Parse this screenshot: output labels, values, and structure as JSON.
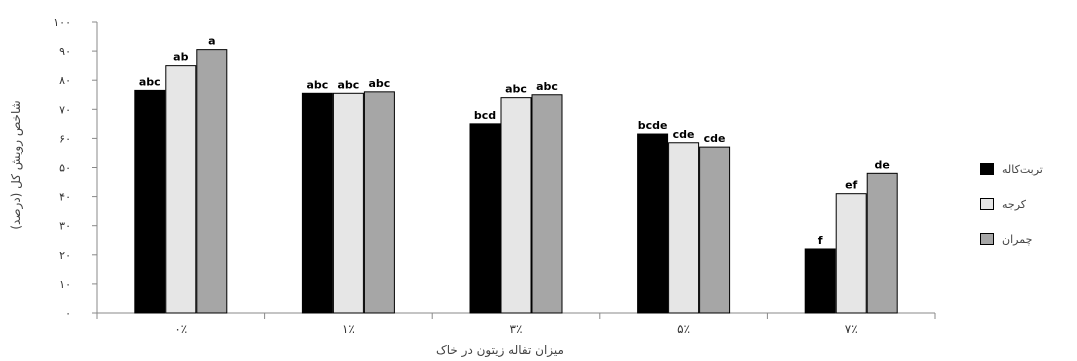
{
  "chart_data": {
    "type": "bar",
    "title": "",
    "xlabel": "میزان تفاله زیتون در خاک",
    "ylabel": "شاخص رویش کل (درصد)",
    "ylim": [
      0,
      100
    ],
    "yticks": [
      0,
      10,
      20,
      30,
      40,
      50,
      60,
      70,
      80,
      90,
      100
    ],
    "ytick_labels": [
      "٠",
      "١٠",
      "٢٠",
      "٣٠",
      "۴٠",
      "۵٠",
      "۶٠",
      "٧٠",
      "٨٠",
      "٩٠",
      "١٠٠"
    ],
    "categories": [
      "٠٪",
      "١٪",
      "٣٪",
      "۵٪",
      "٧٪"
    ],
    "series": [
      {
        "name": "تربت‌کاله",
        "color": "#000000",
        "values": [
          76.5,
          75.5,
          65,
          61.5,
          22
        ],
        "labels": [
          "abc",
          "abc",
          "bcd",
          "bcde",
          "f"
        ]
      },
      {
        "name": "کرجه",
        "color": "#e6e6e6",
        "values": [
          85,
          75.5,
          74,
          58.5,
          41
        ],
        "labels": [
          "ab",
          "abc",
          "abc",
          "cde",
          "ef"
        ]
      },
      {
        "name": "چمران",
        "color": "#a6a6a6",
        "values": [
          90.5,
          76,
          75,
          57,
          48
        ],
        "labels": [
          "a",
          "abc",
          "abc",
          "cde",
          "de"
        ]
      }
    ],
    "legend_position": "right",
    "grid": false
  }
}
